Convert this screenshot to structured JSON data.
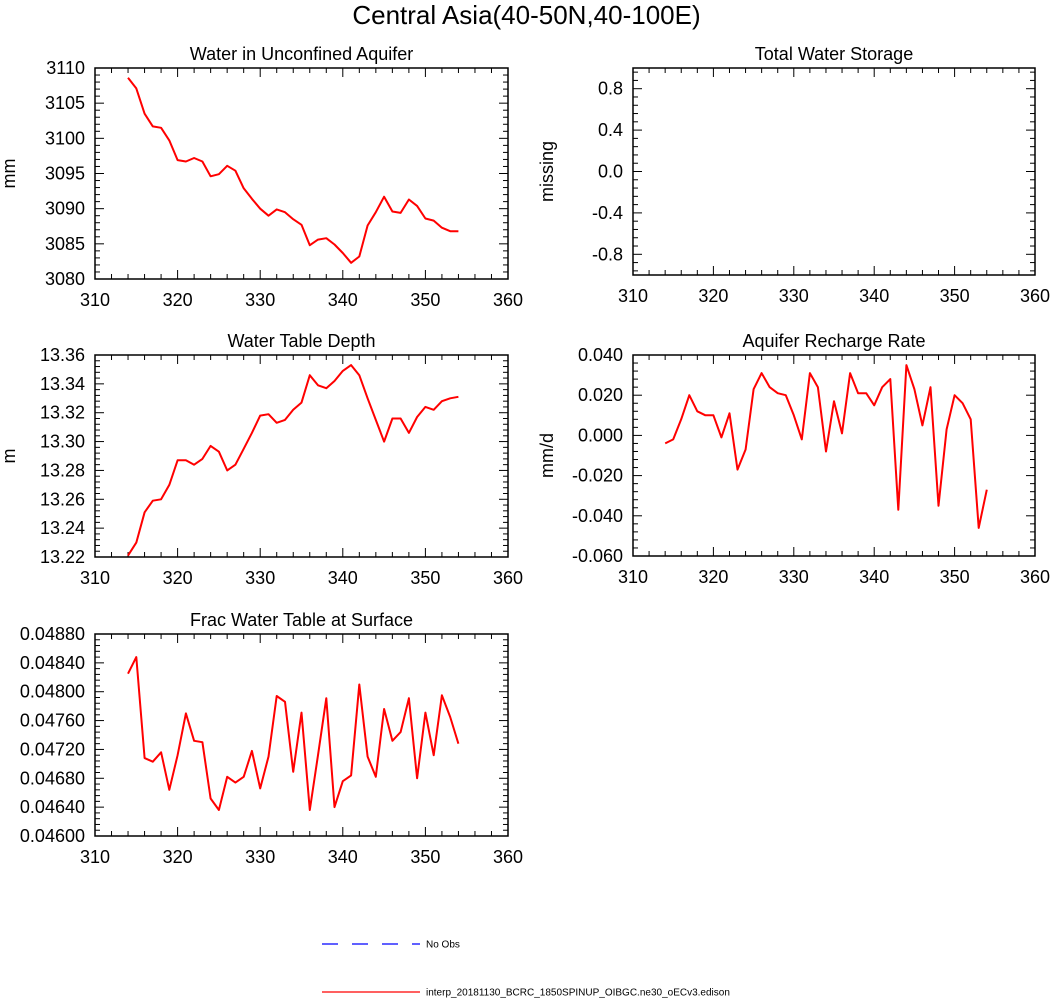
{
  "title": "Central Asia(40-50N,40-100E)",
  "chart_data": [
    {
      "type": "line",
      "title": "Water in Unconfined Aquifer",
      "ylabel": "mm",
      "xlim": [
        310,
        360
      ],
      "ylim": [
        3080,
        3110
      ],
      "xticks": [
        310,
        320,
        330,
        340,
        350,
        360
      ],
      "xtick_labels": [
        "310",
        "320",
        "330",
        "340",
        "350",
        "360"
      ],
      "yticks": [
        3080,
        3085,
        3090,
        3095,
        3100,
        3105,
        3110
      ],
      "ytick_labels": [
        "3080",
        "3085",
        "3090",
        "3095",
        "3100",
        "3105",
        "3110"
      ],
      "x": [
        314,
        315,
        316,
        317,
        318,
        319,
        320,
        321,
        322,
        323,
        324,
        325,
        326,
        327,
        328,
        329,
        330,
        331,
        332,
        333,
        334,
        335,
        336,
        337,
        338,
        339,
        340,
        341,
        342,
        343,
        344,
        345,
        346,
        347,
        348,
        349,
        350,
        351,
        352,
        353,
        354
      ],
      "series": [
        {
          "name": "interp_20181130_BCRC_1850SPINUP_OIBGC.ne30_oECv3.edison",
          "color": "#ff0000",
          "values": [
            3108.6,
            3107.1,
            3103.5,
            3101.7,
            3101.5,
            3099.7,
            3096.9,
            3096.7,
            3097.2,
            3096.7,
            3094.6,
            3094.9,
            3096.1,
            3095.4,
            3092.9,
            3091.4,
            3090.0,
            3089.0,
            3089.9,
            3089.5,
            3088.5,
            3087.7,
            3084.8,
            3085.6,
            3085.8,
            3084.9,
            3083.7,
            3082.3,
            3083.2,
            3087.6,
            3089.5,
            3091.7,
            3089.6,
            3089.4,
            3091.3,
            3090.4,
            3088.6,
            3088.3,
            3087.3,
            3086.8,
            3086.8
          ]
        }
      ]
    },
    {
      "type": "line",
      "title": "Total Water Storage",
      "ylabel": "missing",
      "xlim": [
        310,
        360
      ],
      "ylim": [
        -1,
        1
      ],
      "xticks": [
        310,
        320,
        330,
        340,
        350,
        360
      ],
      "xtick_labels": [
        "310",
        "320",
        "330",
        "340",
        "350",
        "360"
      ],
      "yticks": [
        -0.8,
        -0.4,
        0.0,
        0.4,
        0.8
      ],
      "ytick_labels": [
        "-0.8",
        "-0.4",
        "0.0",
        "0.4",
        "0.8"
      ],
      "x": [],
      "series": []
    },
    {
      "type": "line",
      "title": "Water Table Depth",
      "ylabel": "m",
      "xlim": [
        310,
        360
      ],
      "ylim": [
        13.22,
        13.36
      ],
      "xticks": [
        310,
        320,
        330,
        340,
        350,
        360
      ],
      "xtick_labels": [
        "310",
        "320",
        "330",
        "340",
        "350",
        "360"
      ],
      "yticks": [
        13.22,
        13.24,
        13.26,
        13.28,
        13.3,
        13.32,
        13.34,
        13.36
      ],
      "ytick_labels": [
        "13.22",
        "13.24",
        "13.26",
        "13.28",
        "13.30",
        "13.32",
        "13.34",
        "13.36"
      ],
      "x": [
        314,
        315,
        316,
        317,
        318,
        319,
        320,
        321,
        322,
        323,
        324,
        325,
        326,
        327,
        328,
        329,
        330,
        331,
        332,
        333,
        334,
        335,
        336,
        337,
        338,
        339,
        340,
        341,
        342,
        343,
        344,
        345,
        346,
        347,
        348,
        349,
        350,
        351,
        352,
        353,
        354
      ],
      "series": [
        {
          "name": "interp_20181130_BCRC_1850SPINUP_OIBGC.ne30_oECv3.edison",
          "color": "#ff0000",
          "values": [
            13.221,
            13.23,
            13.251,
            13.259,
            13.26,
            13.27,
            13.287,
            13.287,
            13.284,
            13.288,
            13.297,
            13.293,
            13.28,
            13.284,
            13.295,
            13.306,
            13.318,
            13.319,
            13.313,
            13.315,
            13.322,
            13.327,
            13.346,
            13.339,
            13.337,
            13.342,
            13.349,
            13.353,
            13.346,
            13.33,
            13.315,
            13.3,
            13.316,
            13.316,
            13.306,
            13.317,
            13.324,
            13.322,
            13.328,
            13.33,
            13.331
          ]
        }
      ]
    },
    {
      "type": "line",
      "title": "Aquifer Recharge Rate",
      "ylabel": "mm/d",
      "xlim": [
        310,
        360
      ],
      "ylim": [
        -0.06,
        0.04
      ],
      "xticks": [
        310,
        320,
        330,
        340,
        350,
        360
      ],
      "xtick_labels": [
        "310",
        "320",
        "330",
        "340",
        "350",
        "360"
      ],
      "yticks": [
        -0.06,
        -0.04,
        -0.02,
        0.0,
        0.02,
        0.04
      ],
      "ytick_labels": [
        "-0.060",
        "-0.040",
        "-0.020",
        "0.000",
        "0.020",
        "0.040"
      ],
      "x": [
        314,
        315,
        316,
        317,
        318,
        319,
        320,
        321,
        322,
        323,
        324,
        325,
        326,
        327,
        328,
        329,
        330,
        331,
        332,
        333,
        334,
        335,
        336,
        337,
        338,
        339,
        340,
        341,
        342,
        343,
        344,
        345,
        346,
        347,
        348,
        349,
        350,
        351,
        352,
        353,
        354
      ],
      "series": [
        {
          "name": "interp_20181130_BCRC_1850SPINUP_OIBGC.ne30_oECv3.edison",
          "color": "#ff0000",
          "values": [
            -0.004,
            -0.002,
            0.008,
            0.02,
            0.012,
            0.01,
            0.01,
            -0.001,
            0.011,
            -0.017,
            -0.007,
            0.023,
            0.031,
            0.024,
            0.021,
            0.02,
            0.01,
            -0.002,
            0.031,
            0.024,
            -0.008,
            0.017,
            0.001,
            0.031,
            0.021,
            0.021,
            0.015,
            0.024,
            0.028,
            -0.037,
            0.035,
            0.023,
            0.005,
            0.024,
            -0.035,
            0.003,
            0.02,
            0.016,
            0.008,
            -0.046,
            -0.027
          ]
        }
      ]
    },
    {
      "type": "line",
      "title": "Frac Water Table at Surface",
      "ylabel": "",
      "xlim": [
        310,
        360
      ],
      "ylim": [
        0.046,
        0.0488
      ],
      "xticks": [
        310,
        320,
        330,
        340,
        350,
        360
      ],
      "xtick_labels": [
        "310",
        "320",
        "330",
        "340",
        "350",
        "360"
      ],
      "yticks": [
        0.046,
        0.0464,
        0.0468,
        0.0472,
        0.0476,
        0.048,
        0.0484,
        0.0488
      ],
      "ytick_labels": [
        "0.04600",
        "0.04640",
        "0.04680",
        "0.04720",
        "0.04760",
        "0.04800",
        "0.04840",
        "0.04880"
      ],
      "x": [
        314,
        315,
        316,
        317,
        318,
        319,
        320,
        321,
        322,
        323,
        324,
        325,
        326,
        327,
        328,
        329,
        330,
        331,
        332,
        333,
        334,
        335,
        336,
        337,
        338,
        339,
        340,
        341,
        342,
        343,
        344,
        345,
        346,
        347,
        348,
        349,
        350,
        351,
        352,
        353,
        354
      ],
      "series": [
        {
          "name": "interp_20181130_BCRC_1850SPINUP_OIBGC.ne30_oECv3.edison",
          "color": "#ff0000",
          "values": [
            0.04825,
            0.04848,
            0.04708,
            0.04703,
            0.04716,
            0.04664,
            0.04712,
            0.0477,
            0.04732,
            0.0473,
            0.04652,
            0.04636,
            0.04682,
            0.04674,
            0.04682,
            0.04718,
            0.04666,
            0.0471,
            0.04794,
            0.04786,
            0.04689,
            0.04771,
            0.04636,
            0.04712,
            0.04791,
            0.0464,
            0.04676,
            0.04684,
            0.0481,
            0.0471,
            0.04682,
            0.04776,
            0.04732,
            0.04744,
            0.04791,
            0.0468,
            0.04771,
            0.04712,
            0.04795,
            0.04765,
            0.04728
          ]
        }
      ]
    }
  ],
  "legend": [
    {
      "label": "No Obs",
      "color": "#0000ff",
      "style": "dashed"
    },
    {
      "label": "interp_20181130_BCRC_1850SPINUP_OIBGC.ne30_oECv3.edison",
      "color": "#ff0000",
      "style": "solid"
    }
  ]
}
